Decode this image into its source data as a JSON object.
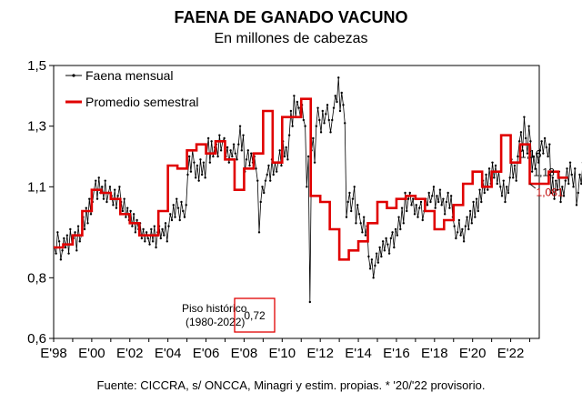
{
  "colors": {
    "monthly": "#000000",
    "semester": "#e00000",
    "red_text": "#c00000"
  },
  "chart_data": {
    "type": "line",
    "title": "FAENA DE GANADO VACUNO",
    "subtitle": "En millones de cabezas",
    "ylim": [
      0.6,
      1.5
    ],
    "yticks": [
      "0,6",
      "0,8",
      "1,1",
      "1,3",
      "1,5"
    ],
    "ytick_values": [
      0.6,
      0.8,
      1.1,
      1.3,
      1.5
    ],
    "xlim": [
      1998,
      2023.5
    ],
    "xticks": [
      "E'98",
      "E'00",
      "E'02",
      "E'04",
      "E'06",
      "E'08",
      "E'10",
      "E'12",
      "E'14",
      "E'16",
      "E'18",
      "E'20",
      "E'22"
    ],
    "xtick_values": [
      1998,
      2000,
      2002,
      2004,
      2006,
      2008,
      2010,
      2012,
      2014,
      2016,
      2018,
      2020,
      2022
    ],
    "legend": {
      "placement": "top-left",
      "monthly": "Faena mensual",
      "semester": "Promedio semestral"
    },
    "series": [
      {
        "name": "Promedio semestral",
        "step": 0.5,
        "start": 1998,
        "values": [
          0.9,
          0.91,
          0.94,
          1.02,
          1.09,
          1.08,
          1.06,
          1.01,
          0.98,
          0.94,
          0.94,
          1.02,
          1.17,
          1.16,
          1.22,
          1.24,
          1.21,
          1.25,
          1.19,
          1.09,
          1.16,
          1.21,
          1.35,
          1.18,
          1.33,
          1.33,
          1.39,
          1.07,
          1.05,
          0.96,
          0.86,
          0.89,
          0.92,
          0.98,
          1.05,
          1.03,
          1.06,
          1.07,
          1.06,
          1.02,
          0.96,
          0.99,
          1.04,
          1.11,
          1.15,
          1.1,
          1.15,
          1.27,
          1.18,
          1.24,
          1.11,
          1.11,
          1.15,
          1.13
        ]
      },
      {
        "name": "Faena mensual",
        "step": 0.0833333,
        "start": 1998,
        "values": [
          0.9,
          0.88,
          0.95,
          0.92,
          0.86,
          0.89,
          0.93,
          0.9,
          0.94,
          0.88,
          0.96,
          0.91,
          0.93,
          0.95,
          0.89,
          0.97,
          0.92,
          0.94,
          1.0,
          0.96,
          1.03,
          0.98,
          1.06,
          1.01,
          1.05,
          1.09,
          1.12,
          1.06,
          1.13,
          1.08,
          1.1,
          1.06,
          1.12,
          1.05,
          1.08,
          1.1,
          1.07,
          1.04,
          1.09,
          1.03,
          1.07,
          1.1,
          1.05,
          1.02,
          1.06,
          1.0,
          1.03,
          0.99,
          1.02,
          0.97,
          1.01,
          0.95,
          0.99,
          0.96,
          0.98,
          0.93,
          0.96,
          0.92,
          0.95,
          0.93,
          0.91,
          0.96,
          0.92,
          0.97,
          0.9,
          0.95,
          0.97,
          0.93,
          0.96,
          0.94,
          0.98,
          0.92,
          0.97,
          1.01,
          0.99,
          1.04,
          1.0,
          1.06,
          1.03,
          0.99,
          1.05,
          1.02,
          1.0,
          1.04,
          1.14,
          1.2,
          1.15,
          1.22,
          1.18,
          1.13,
          1.17,
          1.12,
          1.19,
          1.14,
          1.18,
          1.13,
          1.21,
          1.26,
          1.18,
          1.25,
          1.2,
          1.23,
          1.24,
          1.2,
          1.27,
          1.22,
          1.25,
          1.26,
          1.2,
          1.23,
          1.18,
          1.22,
          1.2,
          1.24,
          1.21,
          1.19,
          1.24,
          1.3,
          1.22,
          1.27,
          1.15,
          1.19,
          1.22,
          1.17,
          1.21,
          1.18,
          1.2,
          1.16,
          1.12,
          0.95,
          1.05,
          1.1,
          1.08,
          1.12,
          1.14,
          1.17,
          1.12,
          1.19,
          1.14,
          1.18,
          1.15,
          1.18,
          1.22,
          1.17,
          1.25,
          1.2,
          1.23,
          1.19,
          1.27,
          1.35,
          1.3,
          1.4,
          1.33,
          1.38,
          1.36,
          1.33,
          1.37,
          1.32,
          1.3,
          1.1,
          1.2,
          0.72,
          1.22,
          1.26,
          1.18,
          1.3,
          1.36,
          1.32,
          1.28,
          1.35,
          1.31,
          1.34,
          1.37,
          1.32,
          1.28,
          1.32,
          1.36,
          1.4,
          1.38,
          1.46,
          1.35,
          1.41,
          1.37,
          1.31,
          1.0,
          1.05,
          1.08,
          1.02,
          1.06,
          1.1,
          0.98,
          1.04,
          1.01,
          0.98,
          0.95,
          1.0,
          0.94,
          0.97,
          0.87,
          0.83,
          0.86,
          0.8,
          0.84,
          0.88,
          0.85,
          0.9,
          0.87,
          0.92,
          0.89,
          0.93,
          0.91,
          0.88,
          0.93,
          0.95,
          0.9,
          0.96,
          0.94,
          1.0,
          0.96,
          1.03,
          0.98,
          1.08,
          1.02,
          1.06,
          1.08,
          1.04,
          1.06,
          1.01,
          1.04,
          1.0,
          1.03,
          1.05,
          0.99,
          1.02,
          1.06,
          1.04,
          1.08,
          1.05,
          1.07,
          1.1,
          1.03,
          1.07,
          1.05,
          1.09,
          1.04,
          1.06,
          1.01,
          1.05,
          1.08,
          1.03,
          1.07,
          1.0,
          0.97,
          0.93,
          0.95,
          0.99,
          0.94,
          0.96,
          0.92,
          0.97,
          1.0,
          0.96,
          1.02,
          0.98,
          1.05,
          1.0,
          1.06,
          1.02,
          1.09,
          1.05,
          1.12,
          1.08,
          1.14,
          1.09,
          1.16,
          1.11,
          1.18,
          1.13,
          1.17,
          1.11,
          1.15,
          1.1,
          1.07,
          1.12,
          1.05,
          1.1,
          1.08,
          1.13,
          1.19,
          1.13,
          1.17,
          1.12,
          1.2,
          1.25,
          1.28,
          1.22,
          1.33,
          1.26,
          1.21,
          1.3,
          1.25,
          1.15,
          1.2,
          1.16,
          1.21,
          1.18,
          1.22,
          1.25,
          1.21,
          1.26,
          1.23,
          1.2,
          1.24,
          1.08,
          1.13,
          1.06,
          1.12,
          1.09,
          1.15,
          1.05,
          1.1,
          1.07,
          1.12,
          1.16,
          1.11,
          1.18,
          1.14,
          1.1,
          1.16,
          1.04,
          1.08,
          1.14,
          1.11,
          1.18,
          1.13,
          1.17,
          1.2,
          1.16,
          1.19,
          1.13
        ]
      }
    ],
    "annotations": [
      {
        "text": "1,16",
        "x": 2022.5,
        "y": 1.16
      },
      {
        "text": "1,13",
        "x": 2022.9,
        "y": 1.13
      },
      {
        "text": "1,081",
        "x": 2023.0,
        "y": 1.081
      }
    ],
    "floor_label": {
      "line1": "Piso histórico",
      "line2": "(1980-2022)",
      "value": "0,72",
      "x": 2008.5,
      "y": 0.72
    },
    "source": "Fuente: CICCRA, s/ ONCCA, Minagri y estim. propias. * '20/'22 provisorio."
  }
}
